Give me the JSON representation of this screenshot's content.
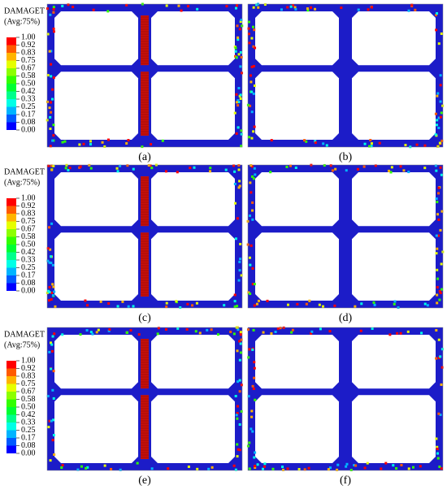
{
  "legends": [
    {
      "title": "DAMAGET",
      "subtitle": "(Avg:75%)",
      "ticks": [
        "1.00",
        "0.92",
        "0.83",
        "0.75",
        "0.67",
        "0.58",
        "0.50",
        "0.42",
        "0.33",
        "0.25",
        "0.17",
        "0.08",
        "0.00"
      ]
    },
    {
      "title": "DAMAGET",
      "subtitle": "(Avg:75%)",
      "ticks": [
        "1.00",
        "0.92",
        "0.83",
        "0.75",
        "0.67",
        "0.58",
        "0.50",
        "0.42",
        "0.33",
        "0.25",
        "0.17",
        "0.08",
        "0.00"
      ]
    },
    {
      "title": "DAMAGET",
      "subtitle": "(Avg:75%)",
      "ticks": [
        "1.00",
        "0.92",
        "0.83",
        "0.75",
        "0.67",
        "0.58",
        "0.50",
        "0.42",
        "0.33",
        "0.25",
        "0.17",
        "0.08",
        "0.00"
      ]
    }
  ],
  "panels": [
    {
      "label": "(a)"
    },
    {
      "label": "(b)"
    },
    {
      "label": "(c)"
    },
    {
      "label": "(d)"
    },
    {
      "label": "(e)"
    },
    {
      "label": "(f)"
    }
  ]
}
